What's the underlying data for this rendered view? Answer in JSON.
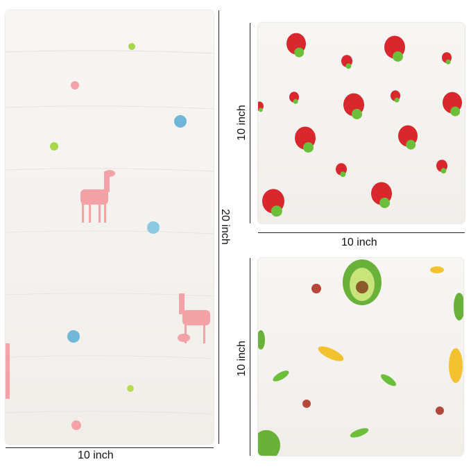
{
  "dimensions": {
    "large_towel_height": "20 inch",
    "large_towel_width": "10 inch",
    "strawberry_towel_height": "10 inch",
    "strawberry_towel_width": "10 inch",
    "fruit_towel_height": "10 inch"
  },
  "colors": {
    "fabric": "#f4f1ed",
    "strawberry": "#d9272e",
    "leaf": "#6cbf3a",
    "llama": "#f3a3a8",
    "avocado": "#7bbf3a",
    "banana": "#f2c230"
  }
}
